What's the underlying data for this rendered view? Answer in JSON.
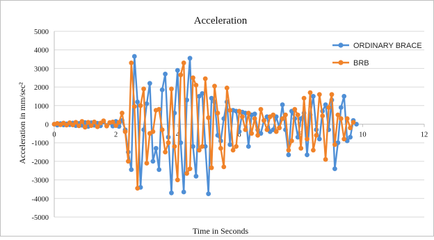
{
  "chart_data": {
    "type": "line",
    "title": "Acceleration",
    "xlabel": "Time in Seconds",
    "ylabel": "Acceleration in mm/sec²",
    "xlim": [
      0,
      12
    ],
    "ylim": [
      -5000,
      5000
    ],
    "xticks": [
      0,
      2,
      4,
      6,
      8,
      10,
      12
    ],
    "yticks": [
      -5000,
      -4000,
      -3000,
      -2000,
      -1000,
      0,
      1000,
      2000,
      3000,
      4000,
      5000
    ],
    "grid": "horizontal",
    "legend_position": "right",
    "series": [
      {
        "name": "ORDINARY BRACE",
        "color": "#4f8fd6",
        "points": [
          [
            0,
            0
          ],
          [
            0.1,
            -50
          ],
          [
            0.2,
            30
          ],
          [
            0.3,
            -40
          ],
          [
            0.4,
            20
          ],
          [
            0.5,
            -30
          ],
          [
            0.6,
            60
          ],
          [
            0.7,
            -80
          ],
          [
            0.8,
            40
          ],
          [
            0.9,
            -60
          ],
          [
            1.0,
            90
          ],
          [
            1.1,
            -120
          ],
          [
            1.2,
            80
          ],
          [
            1.3,
            -60
          ],
          [
            1.4,
            50
          ],
          [
            1.5,
            -90
          ],
          [
            1.6,
            120
          ],
          [
            1.7,
            -70
          ],
          [
            1.8,
            60
          ],
          [
            1.9,
            -100
          ],
          [
            2.0,
            150
          ],
          [
            2.1,
            -120
          ],
          [
            2.2,
            200
          ],
          [
            2.3,
            -300
          ],
          [
            2.4,
            -1500
          ],
          [
            2.5,
            -2450
          ],
          [
            2.6,
            3650
          ],
          [
            2.7,
            1200
          ],
          [
            2.8,
            -3400
          ],
          [
            2.9,
            -300
          ],
          [
            3.0,
            1100
          ],
          [
            3.1,
            2200
          ],
          [
            3.2,
            -2000
          ],
          [
            3.3,
            -1300
          ],
          [
            3.4,
            -2450
          ],
          [
            3.5,
            1850
          ],
          [
            3.6,
            2700
          ],
          [
            3.7,
            -700
          ],
          [
            3.8,
            -3700
          ],
          [
            3.9,
            600
          ],
          [
            4.0,
            2900
          ],
          [
            4.1,
            -1000
          ],
          [
            4.2,
            -3650
          ],
          [
            4.3,
            1300
          ],
          [
            4.4,
            3550
          ],
          [
            4.5,
            -1200
          ],
          [
            4.6,
            -2800
          ],
          [
            4.7,
            1500
          ],
          [
            4.8,
            1650
          ],
          [
            4.9,
            -1200
          ],
          [
            5.0,
            -3750
          ],
          [
            5.1,
            1400
          ],
          [
            5.2,
            1200
          ],
          [
            5.3,
            -600
          ],
          [
            5.4,
            -900
          ],
          [
            5.5,
            300
          ],
          [
            5.6,
            1200
          ],
          [
            5.7,
            -1100
          ],
          [
            5.8,
            750
          ],
          [
            5.9,
            700
          ],
          [
            6.0,
            -400
          ],
          [
            6.1,
            650
          ],
          [
            6.2,
            600
          ],
          [
            6.3,
            -1200
          ],
          [
            6.4,
            500
          ],
          [
            6.5,
            550
          ],
          [
            6.6,
            -300
          ],
          [
            6.7,
            -500
          ],
          [
            6.8,
            200
          ],
          [
            6.9,
            400
          ],
          [
            7.0,
            -400
          ],
          [
            7.1,
            -300
          ],
          [
            7.2,
            400
          ],
          [
            7.3,
            -200
          ],
          [
            7.4,
            1050
          ],
          [
            7.5,
            -300
          ],
          [
            7.6,
            -1650
          ],
          [
            7.7,
            700
          ],
          [
            7.8,
            300
          ],
          [
            7.9,
            -700
          ],
          [
            8.0,
            300
          ],
          [
            8.1,
            600
          ],
          [
            8.2,
            -1650
          ],
          [
            8.3,
            500
          ],
          [
            8.4,
            1500
          ],
          [
            8.5,
            -300
          ],
          [
            8.6,
            -800
          ],
          [
            8.7,
            700
          ],
          [
            8.8,
            1050
          ],
          [
            8.9,
            -300
          ],
          [
            9.0,
            1300
          ],
          [
            9.1,
            -2400
          ],
          [
            9.2,
            -1000
          ],
          [
            9.3,
            900
          ],
          [
            9.4,
            1500
          ],
          [
            9.5,
            -900
          ],
          [
            9.6,
            -700
          ],
          [
            9.7,
            200
          ],
          [
            9.8,
            0
          ]
        ]
      },
      {
        "name": "BRB",
        "color": "#f0832a",
        "points": [
          [
            0,
            0
          ],
          [
            0.1,
            40
          ],
          [
            0.2,
            -30
          ],
          [
            0.3,
            60
          ],
          [
            0.4,
            -50
          ],
          [
            0.5,
            80
          ],
          [
            0.6,
            -40
          ],
          [
            0.7,
            100
          ],
          [
            0.8,
            -90
          ],
          [
            0.9,
            150
          ],
          [
            1.0,
            -160
          ],
          [
            1.1,
            100
          ],
          [
            1.2,
            -80
          ],
          [
            1.3,
            120
          ],
          [
            1.4,
            -140
          ],
          [
            1.5,
            60
          ],
          [
            1.6,
            180
          ],
          [
            1.7,
            -100
          ],
          [
            1.8,
            90
          ],
          [
            1.9,
            120
          ],
          [
            2.0,
            -80
          ],
          [
            2.1,
            100
          ],
          [
            2.2,
            600
          ],
          [
            2.3,
            -400
          ],
          [
            2.4,
            -2000
          ],
          [
            2.5,
            3300
          ],
          [
            2.6,
            950
          ],
          [
            2.7,
            -3450
          ],
          [
            2.8,
            1000
          ],
          [
            2.9,
            1900
          ],
          [
            3.0,
            -2100
          ],
          [
            3.1,
            -500
          ],
          [
            3.2,
            -400
          ],
          [
            3.3,
            750
          ],
          [
            3.4,
            800
          ],
          [
            3.5,
            -300
          ],
          [
            3.6,
            -1500
          ],
          [
            3.7,
            -1000
          ],
          [
            3.8,
            1900
          ],
          [
            3.9,
            -1200
          ],
          [
            4.0,
            -3000
          ],
          [
            4.1,
            2650
          ],
          [
            4.2,
            3300
          ],
          [
            4.3,
            -2650
          ],
          [
            4.4,
            -2400
          ],
          [
            4.5,
            2500
          ],
          [
            4.6,
            2100
          ],
          [
            4.7,
            -1400
          ],
          [
            4.8,
            -1200
          ],
          [
            4.9,
            2450
          ],
          [
            5.0,
            350
          ],
          [
            5.1,
            -2350
          ],
          [
            5.2,
            2050
          ],
          [
            5.3,
            600
          ],
          [
            5.4,
            -1300
          ],
          [
            5.5,
            -2300
          ],
          [
            5.6,
            1950
          ],
          [
            5.7,
            750
          ],
          [
            5.8,
            -1400
          ],
          [
            5.9,
            -1200
          ],
          [
            6.0,
            700
          ],
          [
            6.1,
            400
          ],
          [
            6.2,
            -300
          ],
          [
            6.3,
            600
          ],
          [
            6.4,
            -500
          ],
          [
            6.5,
            300
          ],
          [
            6.6,
            -600
          ],
          [
            6.7,
            800
          ],
          [
            6.8,
            200
          ],
          [
            6.9,
            -300
          ],
          [
            7.0,
            400
          ],
          [
            7.1,
            500
          ],
          [
            7.2,
            -400
          ],
          [
            7.3,
            -200
          ],
          [
            7.4,
            300
          ],
          [
            7.5,
            500
          ],
          [
            7.6,
            -1400
          ],
          [
            7.7,
            -900
          ],
          [
            7.8,
            800
          ],
          [
            7.9,
            500
          ],
          [
            8.0,
            -1300
          ],
          [
            8.1,
            1400
          ],
          [
            8.2,
            -800
          ],
          [
            8.3,
            1700
          ],
          [
            8.4,
            -1400
          ],
          [
            8.5,
            -600
          ],
          [
            8.6,
            1600
          ],
          [
            8.7,
            450
          ],
          [
            8.8,
            -1900
          ],
          [
            8.9,
            900
          ],
          [
            9.0,
            1600
          ],
          [
            9.1,
            -1100
          ],
          [
            9.2,
            500
          ],
          [
            9.3,
            300
          ],
          [
            9.4,
            -800
          ],
          [
            9.5,
            300
          ],
          [
            9.6,
            -200
          ],
          [
            9.7,
            100
          ]
        ]
      }
    ]
  }
}
